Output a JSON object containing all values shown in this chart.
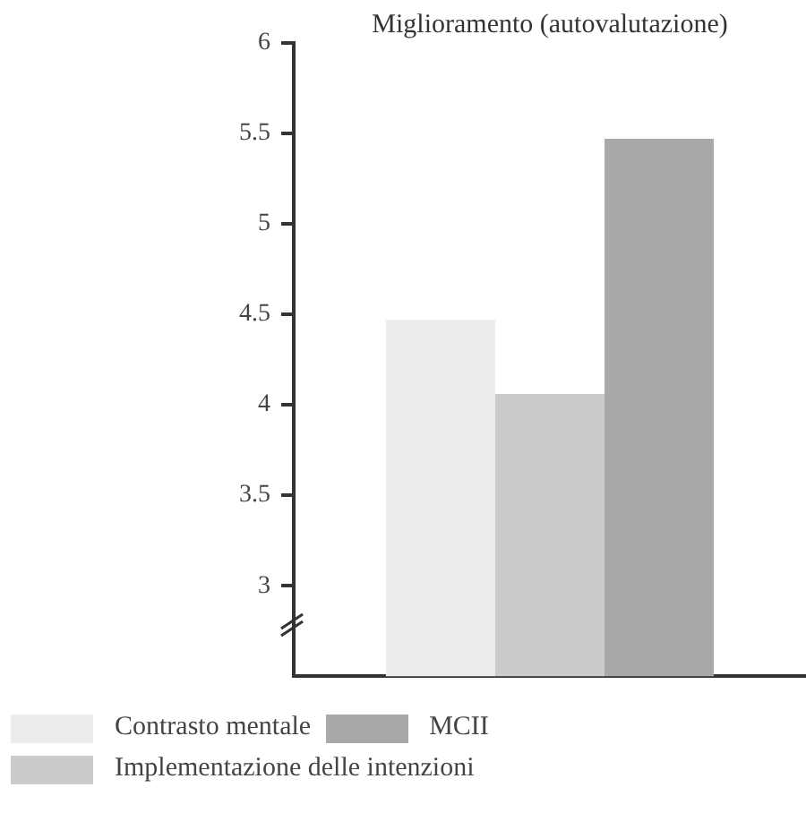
{
  "chart_data": {
    "type": "bar",
    "title": "Miglioramento (autovalutazione)",
    "categories": [
      null
    ],
    "series": [
      {
        "name": "Contrasto mentale",
        "color": "#ececec",
        "values": [
          4.47
        ]
      },
      {
        "name": "Implementazione delle intenzioni",
        "color": "#cbcbcb",
        "values": [
          4.06
        ]
      },
      {
        "name": "MCII",
        "color": "#a9a9a9",
        "values": [
          5.47
        ]
      }
    ],
    "ylim": [
      2.5,
      6
    ],
    "yticks": [
      3,
      3.5,
      4,
      4.5,
      5,
      5.5,
      6
    ],
    "grid": false,
    "legend": "bottom left"
  }
}
